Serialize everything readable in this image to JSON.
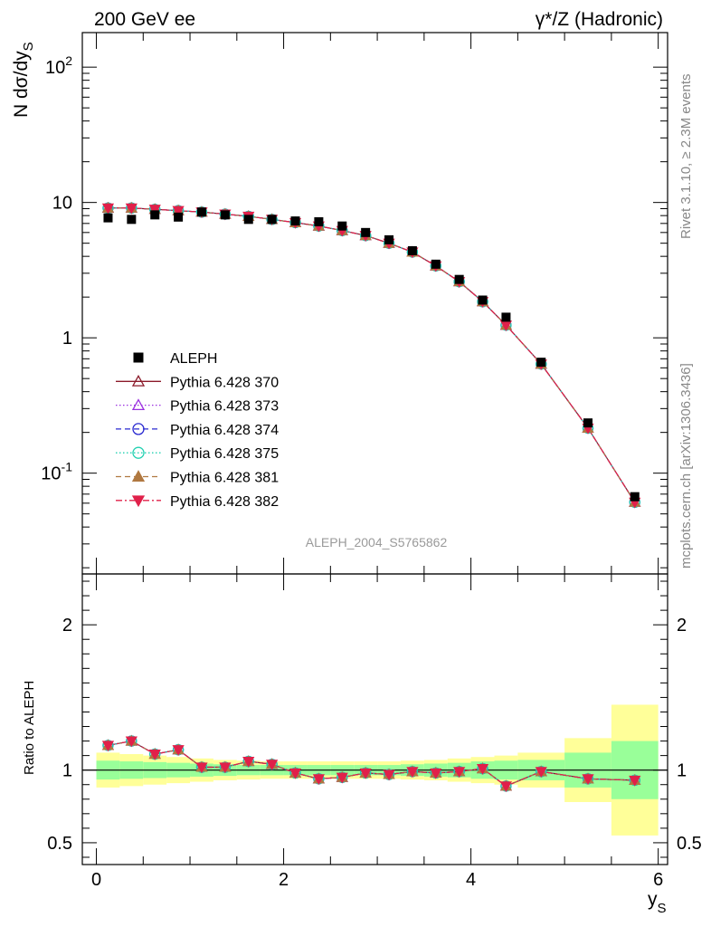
{
  "header": {
    "left_title": "200 GeV ee",
    "right_title": "γ*/Z (Hadronic)"
  },
  "side_text": {
    "top": "Rivet 3.1.10, ≥ 2.3M events",
    "bottom": "mcplots.cern.ch [arXiv:1306.3436]"
  },
  "analysis_tag": "ALEPH_2004_S5765862",
  "chart_data": [
    {
      "type": "scatter",
      "ylabel": "N dσ/dy_S",
      "yscale": "log",
      "ylim": [
        0.018,
        180
      ],
      "xlim": [
        -0.15,
        6.1
      ],
      "yticks_major": [
        "10^-1",
        "1",
        "10",
        "10^2"
      ],
      "x": [
        0.125,
        0.375,
        0.625,
        0.875,
        1.125,
        1.375,
        1.625,
        1.875,
        2.125,
        2.375,
        2.625,
        2.875,
        3.125,
        3.375,
        3.625,
        3.875,
        4.125,
        4.375,
        4.75,
        5.25,
        5.75
      ],
      "data_series": {
        "name": "ALEPH",
        "values": [
          7.7,
          7.5,
          8.1,
          7.8,
          8.5,
          8.1,
          7.5,
          7.5,
          7.3,
          7.2,
          6.7,
          6.0,
          5.3,
          4.4,
          3.5,
          2.7,
          1.9,
          1.42,
          0.66,
          0.235,
          0.067
        ]
      },
      "mc_values": [
        9.1,
        9.1,
        8.9,
        8.7,
        8.5,
        8.2,
        7.9,
        7.5,
        7.1,
        6.7,
        6.2,
        5.7,
        5.0,
        4.3,
        3.4,
        2.6,
        1.85,
        1.24,
        0.64,
        0.215,
        0.061
      ],
      "legend_position": "left-middle",
      "legend": [
        {
          "name": "ALEPH",
          "color": "#000000",
          "marker": "filled-square",
          "line": "none"
        },
        {
          "name": "Pythia 6.428 370",
          "color": "#8b1a2a",
          "marker": "open-triangle-up",
          "line": "solid"
        },
        {
          "name": "Pythia 6.428 373",
          "color": "#9b30e0",
          "marker": "open-triangle-up",
          "line": "dotted"
        },
        {
          "name": "Pythia 6.428 374",
          "color": "#2828d0",
          "marker": "open-circle",
          "line": "dashed"
        },
        {
          "name": "Pythia 6.428 375",
          "color": "#20d0b0",
          "marker": "open-circle",
          "line": "dotted"
        },
        {
          "name": "Pythia 6.428 381",
          "color": "#b07840",
          "marker": "filled-triangle-up",
          "line": "dashed"
        },
        {
          "name": "Pythia 6.428 382",
          "color": "#e0204a",
          "marker": "filled-triangle-down",
          "line": "dashdot"
        }
      ]
    },
    {
      "type": "line",
      "ylabel": "Ratio to ALEPH",
      "xlabel": "y_S",
      "ylim": [
        0.35,
        2.35
      ],
      "xlim": [
        -0.15,
        6.1
      ],
      "yticks": [
        0.5,
        1,
        2
      ],
      "xticks": [
        0,
        2,
        4,
        6
      ],
      "x": [
        0.125,
        0.375,
        0.625,
        0.875,
        1.125,
        1.375,
        1.625,
        1.875,
        2.125,
        2.375,
        2.625,
        2.875,
        3.125,
        3.375,
        3.625,
        3.875,
        4.125,
        4.375,
        4.75,
        5.25,
        5.75
      ],
      "ratio_values": [
        1.17,
        1.2,
        1.11,
        1.14,
        1.02,
        1.02,
        1.06,
        1.04,
        0.98,
        0.94,
        0.95,
        0.98,
        0.97,
        0.99,
        0.98,
        0.99,
        1.01,
        0.89,
        0.99,
        0.94,
        0.93
      ],
      "bands": {
        "edges": [
          0,
          0.25,
          0.5,
          0.75,
          1.0,
          1.25,
          1.5,
          1.75,
          2.0,
          2.25,
          2.5,
          2.75,
          3.0,
          3.25,
          3.5,
          3.75,
          4.0,
          4.25,
          4.5,
          5.0,
          5.5,
          6.0
        ],
        "inner_halfwidth": [
          0.065,
          0.06,
          0.055,
          0.05,
          0.045,
          0.04,
          0.035,
          0.035,
          0.035,
          0.035,
          0.035,
          0.035,
          0.035,
          0.04,
          0.045,
          0.05,
          0.06,
          0.065,
          0.07,
          0.12,
          0.2
        ],
        "outer_halfwidth": [
          0.12,
          0.11,
          0.1,
          0.09,
          0.08,
          0.07,
          0.065,
          0.06,
          0.06,
          0.06,
          0.06,
          0.06,
          0.06,
          0.065,
          0.07,
          0.08,
          0.09,
          0.1,
          0.12,
          0.22,
          0.45
        ],
        "inner_color": "#99ff99",
        "outer_color": "#ffff99"
      }
    }
  ]
}
